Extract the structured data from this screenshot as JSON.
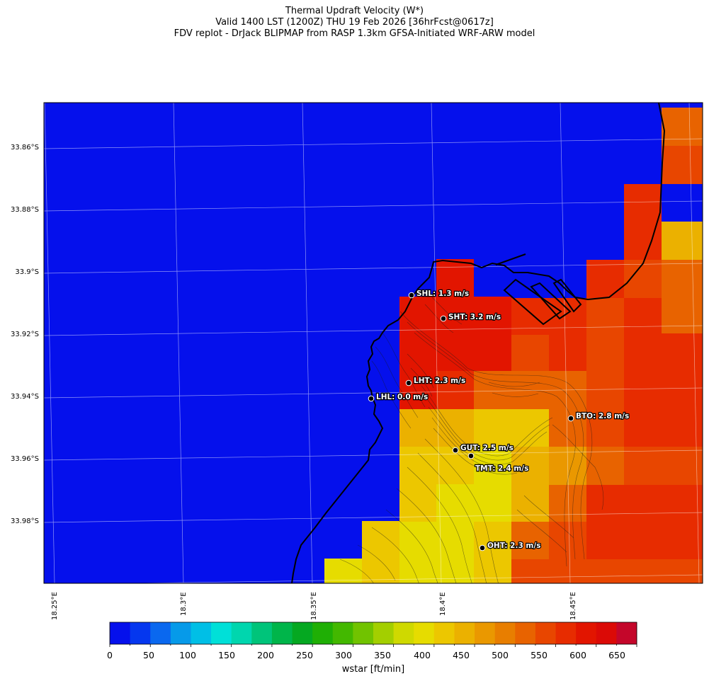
{
  "header": {
    "line1": "Thermal Updraft Velocity (W*)",
    "line2": "Valid 1400 LST (1200Z) THU 19 Feb 2026 [36hrFcst@0617z]",
    "line3": "FDV replot - DrJack BLIPMAP from RASP 1.3km GFSA-Initiated WRF-ARW model"
  },
  "axes": {
    "lat_labels": [
      "33.86°S",
      "33.88°S",
      "33.9°S",
      "33.92°S",
      "33.94°S",
      "33.96°S",
      "33.98°S"
    ],
    "lon_labels": [
      "18.25°E",
      "18.3°E",
      "18.35°E",
      "18.4°E",
      "18.45°E"
    ]
  },
  "stations": [
    {
      "code": "SHL",
      "label": "SHL: 1.3 m/s",
      "wstar_ms": 1.3
    },
    {
      "code": "SHT",
      "label": "SHT: 3.2 m/s",
      "wstar_ms": 3.2
    },
    {
      "code": "LHT",
      "label": "LHT: 2.3 m/s",
      "wstar_ms": 2.3
    },
    {
      "code": "LHL",
      "label": "LHL: 0.0 m/s",
      "wstar_ms": 0.0
    },
    {
      "code": "BTO",
      "label": "BTO: 2.8 m/s",
      "wstar_ms": 2.8
    },
    {
      "code": "GUT",
      "label": "GUT: 2.5 m/s",
      "wstar_ms": 2.5
    },
    {
      "code": "TMT",
      "label": "TMT: 2.4 m/s",
      "wstar_ms": 2.4
    },
    {
      "code": "OHT",
      "label": "OHT: 2.3 m/s",
      "wstar_ms": 2.3
    }
  ],
  "colorbar": {
    "label": "wstar [ft/min]",
    "tick_labels": [
      "0",
      "50",
      "100",
      "150",
      "200",
      "250",
      "300",
      "350",
      "400",
      "450",
      "500",
      "550",
      "600",
      "650"
    ],
    "colors": [
      "#0510ec",
      "#0537ef",
      "#0a68ef",
      "#069ae9",
      "#00bfe6",
      "#00e0d8",
      "#00d6ae",
      "#00c47a",
      "#00b54a",
      "#05a821",
      "#1faf05",
      "#43b800",
      "#71c300",
      "#a3cf00",
      "#cfd900",
      "#e6dc00",
      "#ecc700",
      "#ebb100",
      "#ea9800",
      "#e87e00",
      "#e86300",
      "#e84600",
      "#e72c00",
      "#e21500",
      "#db0a06",
      "#c4062a"
    ]
  },
  "chart_data": {
    "type": "heatmap",
    "title": "Thermal Updraft Velocity (W*)",
    "colorbar_label": "wstar [ft/min]",
    "colorbar_range": [
      0,
      675
    ],
    "colorbar_step": 25,
    "lat_ticks": [
      -33.86,
      -33.88,
      -33.9,
      -33.92,
      -33.94,
      -33.96,
      -33.98
    ],
    "lon_ticks": [
      18.25,
      18.3,
      18.35,
      18.4,
      18.45
    ],
    "cells": [
      {
        "wstar_ftmin": 570,
        "fill": "#e86300"
      },
      {
        "wstar_ftmin": 595,
        "fill": "#e72c00"
      },
      {
        "wstar_ftmin": 615,
        "fill": "#e21500"
      },
      {
        "wstar_ftmin": 640,
        "fill": "#db0a06"
      },
      {
        "wstar_ftmin": 470,
        "fill": "#ebb100"
      },
      {
        "wstar_ftmin": 440,
        "fill": "#ecc700"
      },
      {
        "wstar_ftmin": 415,
        "fill": "#e6dc00"
      },
      {
        "wstar_ftmin": 550,
        "fill": "#e86300"
      },
      {
        "wstar_ftmin": 0,
        "fill": "#0510ec"
      }
    ]
  }
}
